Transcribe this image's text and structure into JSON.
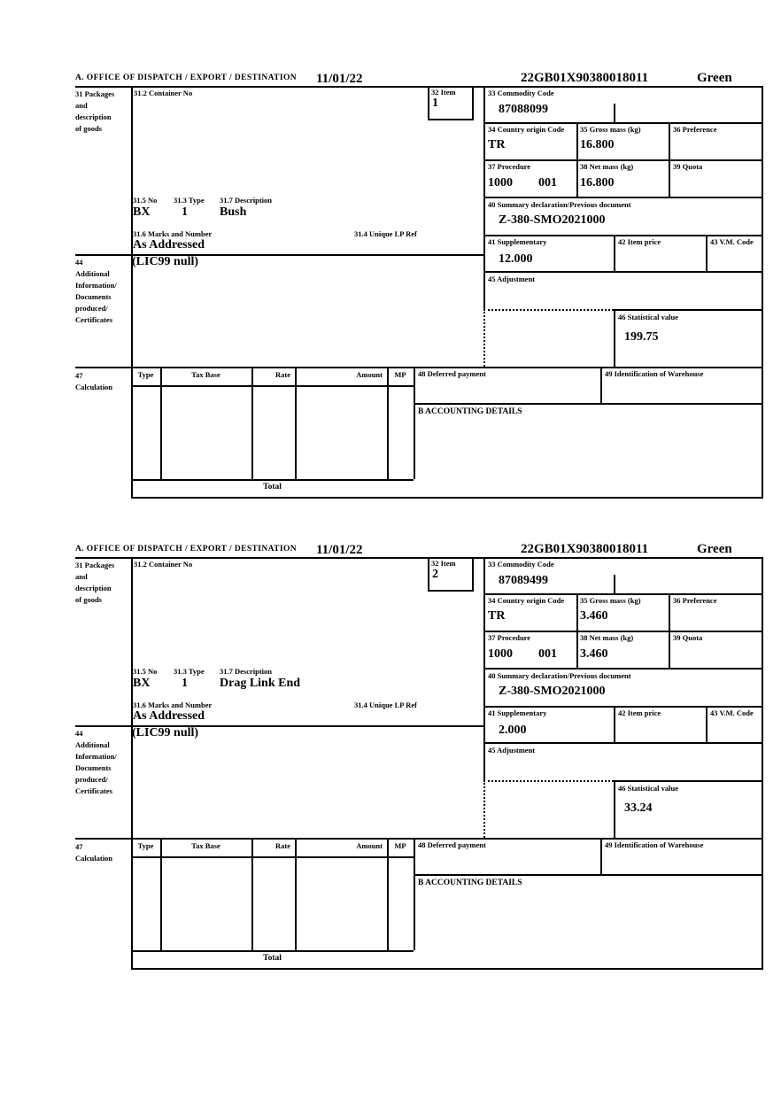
{
  "colors": {
    "ink": "#000000",
    "paper": "#ffffff"
  },
  "labels": {
    "office": "A.  OFFICE OF DISPATCH / EXPORT / DESTINATION",
    "box31": "31 Packages\nand\ndescription\nof goods",
    "box31_2": "31.2 Container No",
    "box31_5": "31.5 No",
    "box31_3": "31.3 Type",
    "box31_7": "31.7 Description",
    "box31_6": "31.6 Marks and Number",
    "box31_4": "31.4 Unique LP Ref",
    "box32": "32 Item",
    "box33": "33 Commodity Code",
    "box34": "34 Country origin Code",
    "box35": "35 Gross mass (kg)",
    "box36": "36 Preference",
    "box37": "37 Procedure",
    "box38": "38 Net mass (kg)",
    "box39": "39 Quota",
    "box40": "40 Summary declaration/Previous document",
    "box41": "41 Supplementary",
    "box42": "42 Item price",
    "box43": "43 V.M. Code",
    "box44": "44\nAdditional\nInformation/\nDocuments\nproduced/\nCertificates",
    "box45": "45 Adjustment",
    "box46": "46 Statistical value",
    "box47": "47\nCalculation",
    "box48": "48 Deferred payment",
    "box49": "49 Identification of Warehouse",
    "accounting": "B ACCOUNTING DETAILS",
    "calc_type": "Type",
    "calc_tax_base": "Tax Base",
    "calc_rate": "Rate",
    "calc_amount": "Amount",
    "calc_mp": "MP",
    "total": "Total"
  },
  "items": [
    {
      "date": "11/01/22",
      "declaration_id": "22GB01X90380018011",
      "routing": "Green",
      "item_no": "1",
      "commodity_code": "87088099",
      "country_origin": "TR",
      "gross_mass": "16.800",
      "procedure": "1000",
      "procedure_extra": "001",
      "net_mass": "16.800",
      "previous_document": "Z-380-SMO2021000",
      "supplementary_units": "12.000",
      "statistical_value": "199.75",
      "package_no": "BX",
      "package_type": "1",
      "goods_description": "Bush",
      "marks_and_number": "As Addressed",
      "additional_information": "(LIC99 null)"
    },
    {
      "date": "11/01/22",
      "declaration_id": "22GB01X90380018011",
      "routing": "Green",
      "item_no": "2",
      "commodity_code": "87089499",
      "country_origin": "TR",
      "gross_mass": "3.460",
      "procedure": "1000",
      "procedure_extra": "001",
      "net_mass": "3.460",
      "previous_document": "Z-380-SMO2021000",
      "supplementary_units": "2.000",
      "statistical_value": "33.24",
      "package_no": "BX",
      "package_type": "1",
      "goods_description": "Drag Link End",
      "marks_and_number": "As Addressed",
      "additional_information": "(LIC99 null)"
    }
  ]
}
